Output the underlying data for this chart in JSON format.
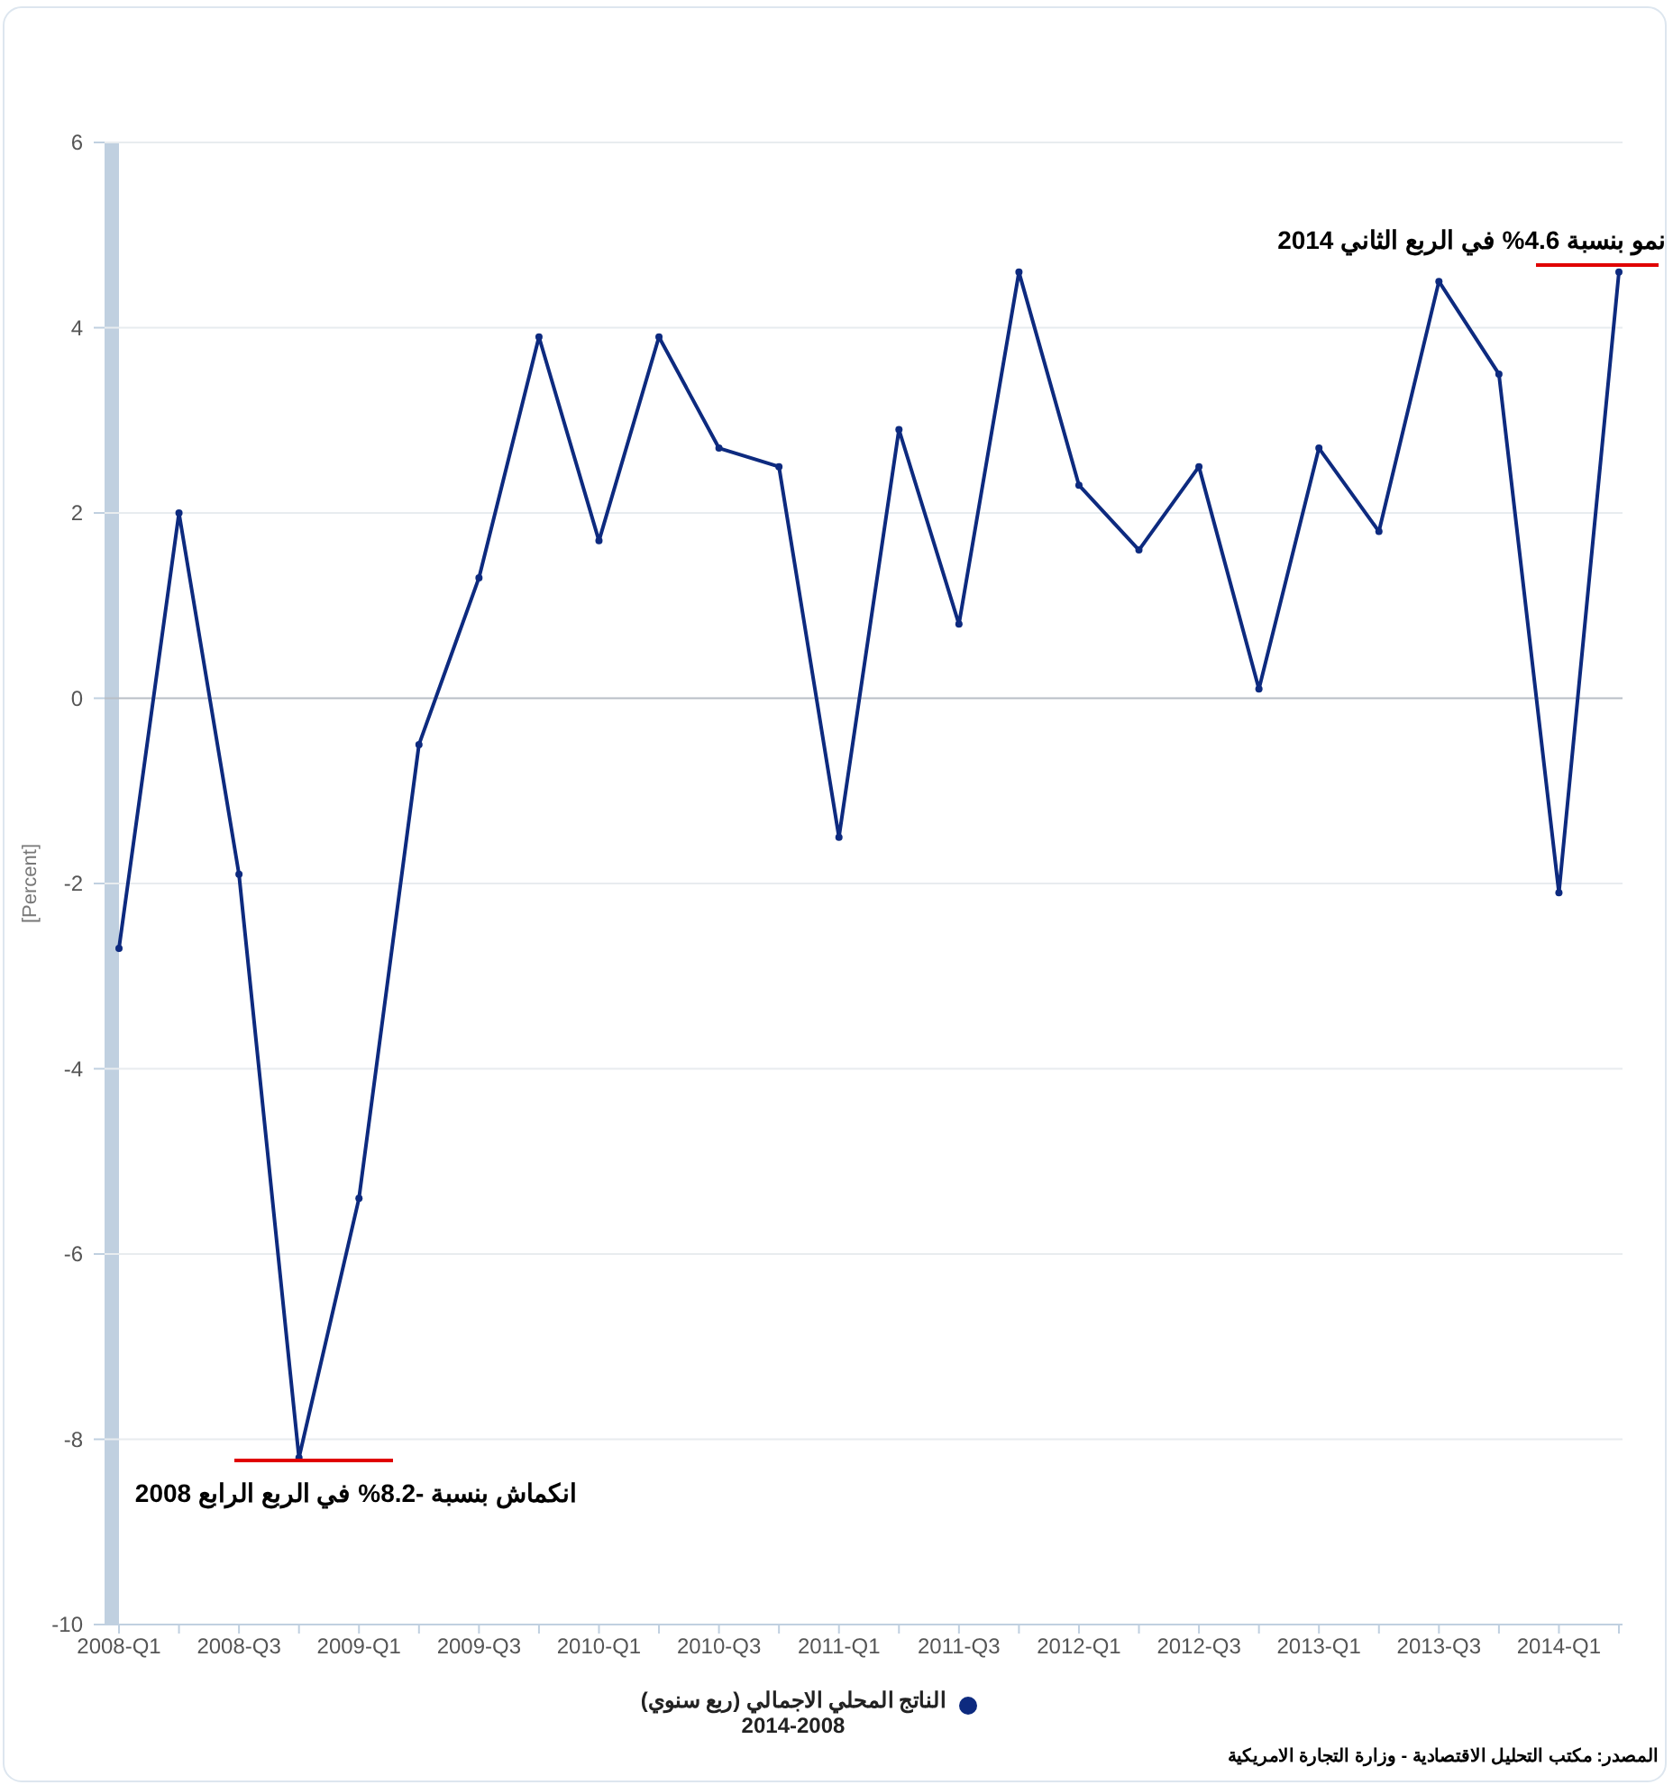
{
  "chart_data": {
    "type": "line",
    "ylabel": "[Percent]",
    "categories": [
      "2008-Q1",
      null,
      "2008-Q3",
      null,
      "2009-Q1",
      null,
      "2009-Q3",
      null,
      "2010-Q1",
      null,
      "2010-Q3",
      null,
      "2011-Q1",
      null,
      "2011-Q3",
      null,
      "2012-Q1",
      null,
      "2012-Q3",
      null,
      "2013-Q1",
      null,
      "2013-Q3",
      null,
      "2014-Q1",
      null
    ],
    "series": [
      {
        "name": "الناتج المحلي الاجمالي (ربع سنوي)\n2014-2008",
        "color": "#0d2a7f",
        "values": [
          -2.7,
          2.0,
          -1.9,
          -8.2,
          -5.4,
          -0.5,
          1.3,
          3.9,
          1.7,
          3.9,
          2.7,
          2.5,
          -1.5,
          2.9,
          0.8,
          4.6,
          2.3,
          1.6,
          2.5,
          0.1,
          2.7,
          1.8,
          4.5,
          3.5,
          -2.1,
          4.6
        ]
      }
    ],
    "ylim": [
      -10,
      6
    ],
    "yticks": [
      -10,
      -8,
      -6,
      -4,
      -2,
      0,
      2,
      4,
      6
    ],
    "grid": "y",
    "legend": "bottom",
    "marker": "circle",
    "line_style": "solid",
    "annotations": [
      "نمو بنسبة 4.6% في الربع الثاني 2014",
      "انكماش بنسبة -8.2% في الربع الرابع 2008",
      "المصدر: مكتب التحليل الاقتصادية - وزارة التجارة الامريكية"
    ]
  }
}
